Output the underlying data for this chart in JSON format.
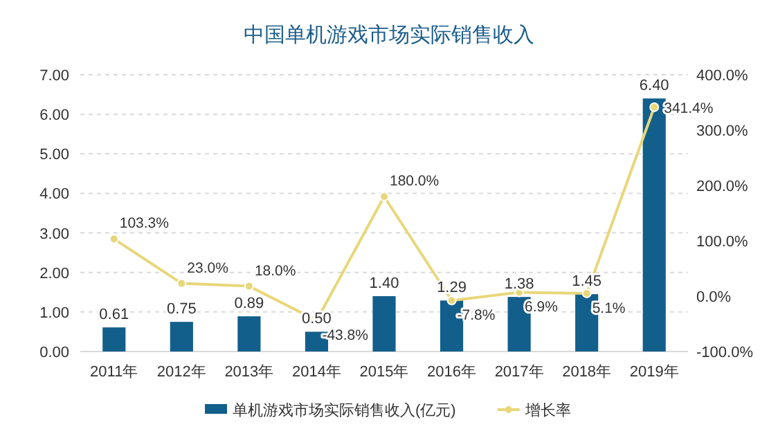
{
  "chart_data": {
    "type": "bar",
    "title": "中国单机游戏市场实际销售收入",
    "categories": [
      "2011年",
      "2012年",
      "2013年",
      "2014年",
      "2015年",
      "2016年",
      "2017年",
      "2018年",
      "2019年"
    ],
    "series": [
      {
        "name": "单机游戏市场实际销售收入(亿元)",
        "color": "#135f8b",
        "values": [
          0.61,
          0.75,
          0.89,
          0.5,
          1.4,
          1.29,
          1.38,
          1.45,
          6.4
        ],
        "value_labels": [
          "0.61",
          "0.75",
          "0.89",
          "0.50",
          "1.40",
          "1.29",
          "1.38",
          "1.45",
          "6.40"
        ]
      },
      {
        "name": "增长率",
        "type": "line",
        "axis": "y2",
        "color": "#e8d77a",
        "marker": "circle",
        "values": [
          103.3,
          23.0,
          18.0,
          -43.8,
          180.0,
          -7.8,
          6.9,
          5.1,
          341.4
        ],
        "value_labels": [
          "103.3%",
          "23.0%",
          "18.0%",
          "-43.8%",
          "180.0%",
          "-7.8%",
          "6.9%",
          "5.1%",
          "341.4%"
        ]
      }
    ],
    "ylim": [
      0,
      7
    ],
    "yticks": [
      {
        "value": 0,
        "label": "0.00"
      },
      {
        "value": 1,
        "label": "1.00"
      },
      {
        "value": 2,
        "label": "2.00"
      },
      {
        "value": 3,
        "label": "3.00"
      },
      {
        "value": 4,
        "label": "4.00"
      },
      {
        "value": 5,
        "label": "5.00"
      },
      {
        "value": 6,
        "label": "6.00"
      },
      {
        "value": 7,
        "label": "7.00"
      }
    ],
    "y2lim": [
      -100,
      400
    ],
    "y2ticks": [
      {
        "value": -100,
        "label": "-100.0%"
      },
      {
        "value": 0,
        "label": "0.0%"
      },
      {
        "value": 100,
        "label": "100.0%"
      },
      {
        "value": 200,
        "label": "200.0%"
      },
      {
        "value": 300,
        "label": "300.0%"
      },
      {
        "value": 400,
        "label": "400.0%"
      }
    ],
    "grid": "y",
    "legend": "bottom"
  }
}
